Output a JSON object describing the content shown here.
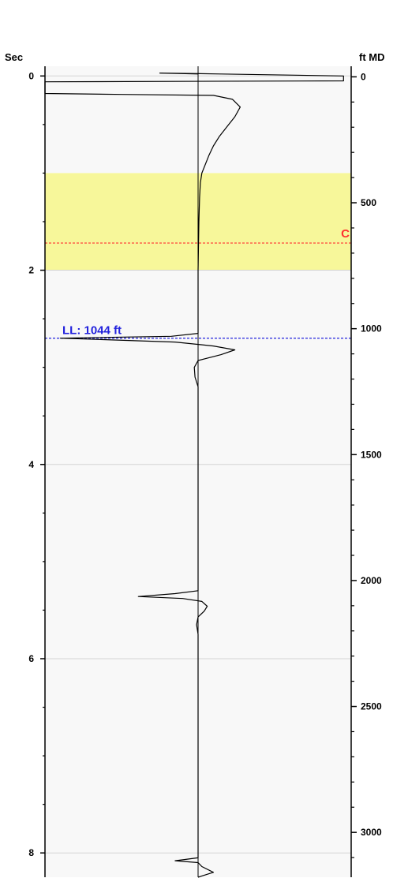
{
  "chart_data": {
    "type": "line",
    "left_axis": {
      "title": "Sec",
      "range": [
        -0.1,
        8.25
      ],
      "major_ticks": [
        0,
        2,
        4,
        6,
        8
      ],
      "tick_labels": [
        "0",
        "2",
        "4",
        "6",
        "8"
      ],
      "minor_step": 0.5,
      "gridlines_at": [
        0,
        2,
        4,
        6,
        8
      ]
    },
    "right_axis": {
      "title": "ft MD",
      "range": [
        -42,
        3178
      ],
      "major_ticks": [
        0,
        500,
        1000,
        1500,
        2000,
        2500,
        3000
      ],
      "tick_labels": [
        "0",
        "500",
        "1000",
        "1500",
        "2000",
        "2500",
        "3000"
      ],
      "minor_step": 100
    },
    "x_center": 0,
    "x_range": [
      -2,
      2
    ],
    "shaded_zone": {
      "top_sec": 1.0,
      "bottom_sec": 2.0,
      "color": "#f7f79a"
    },
    "markers": [
      {
        "label": "C",
        "depth_sec": 1.72,
        "color": "#ff3030"
      },
      {
        "label": "LL: 1044 ft",
        "depth_sec": 2.7,
        "color": "#2222dd"
      }
    ],
    "series": [
      {
        "points": [
          [
            0.0,
            -0.02
          ],
          [
            -0.5,
            -0.03
          ],
          [
            0.3,
            -0.02
          ],
          [
            1.9,
            0.0
          ],
          [
            1.9,
            0.05
          ],
          [
            -2.0,
            0.06
          ],
          [
            -2.0,
            0.18
          ],
          [
            -1.0,
            0.19
          ],
          [
            0.2,
            0.2
          ],
          [
            0.45,
            0.24
          ],
          [
            0.55,
            0.32
          ],
          [
            0.48,
            0.42
          ],
          [
            0.38,
            0.52
          ],
          [
            0.28,
            0.62
          ],
          [
            0.2,
            0.72
          ],
          [
            0.14,
            0.82
          ],
          [
            0.09,
            0.92
          ],
          [
            0.05,
            1.0
          ],
          [
            0.03,
            1.1
          ],
          [
            0.02,
            1.25
          ],
          [
            0.01,
            1.5
          ],
          [
            0.0,
            2.0
          ],
          [
            0.0,
            2.65
          ],
          [
            -0.35,
            2.68
          ],
          [
            -1.8,
            2.7
          ],
          [
            -0.3,
            2.74
          ],
          [
            0.2,
            2.78
          ],
          [
            0.48,
            2.82
          ],
          [
            0.3,
            2.87
          ],
          [
            0.0,
            2.93
          ],
          [
            -0.05,
            3.0
          ],
          [
            -0.04,
            3.1
          ],
          [
            0.0,
            3.2
          ],
          [
            0.0,
            5.3
          ],
          [
            -0.3,
            5.33
          ],
          [
            -0.78,
            5.36
          ],
          [
            -0.2,
            5.38
          ],
          [
            0.05,
            5.41
          ],
          [
            0.12,
            5.46
          ],
          [
            0.08,
            5.51
          ],
          [
            0.0,
            5.57
          ],
          [
            -0.02,
            5.65
          ],
          [
            0.0,
            5.75
          ],
          [
            0.0,
            8.05
          ],
          [
            -0.3,
            8.08
          ],
          [
            0.0,
            8.1
          ],
          [
            0.05,
            8.14
          ],
          [
            0.2,
            8.2
          ],
          [
            0.0,
            8.25
          ]
        ]
      }
    ]
  }
}
